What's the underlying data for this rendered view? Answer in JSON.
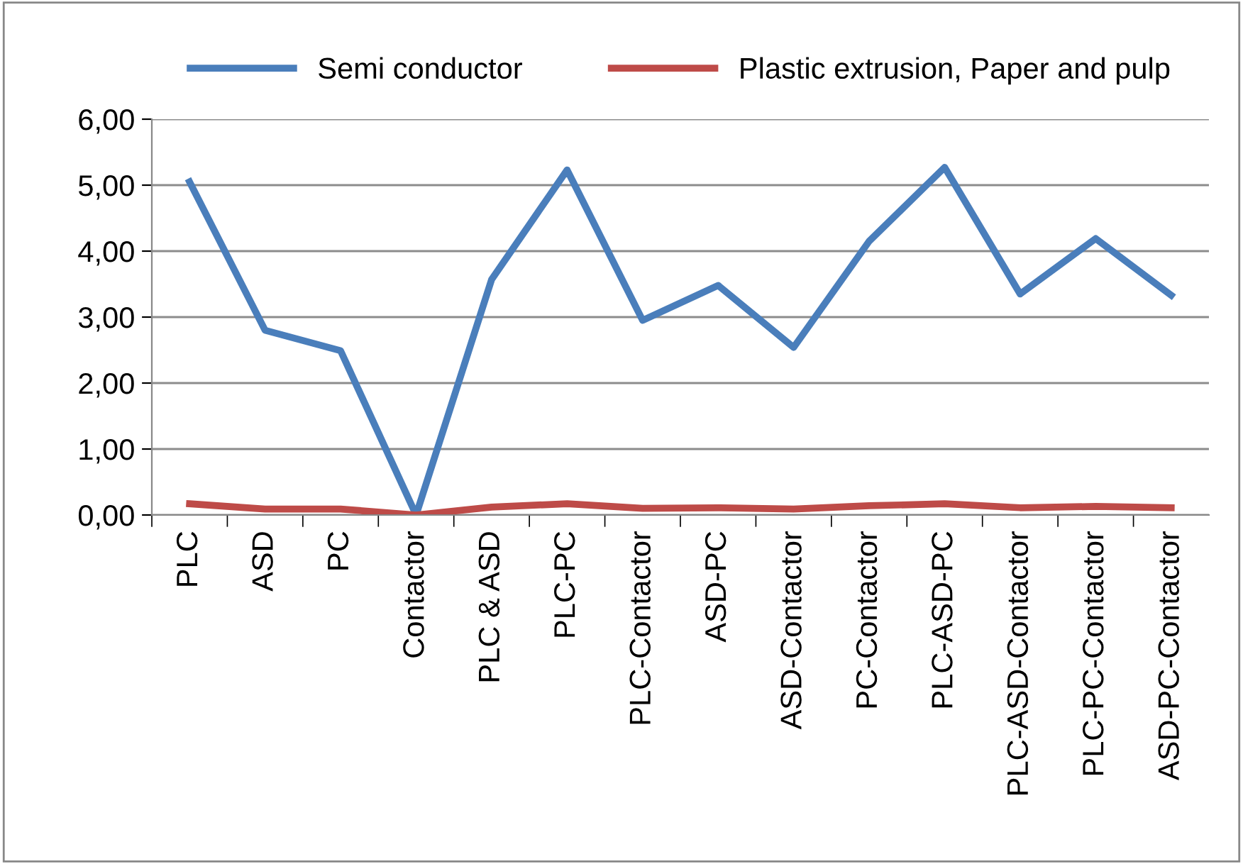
{
  "chart_data": {
    "type": "line",
    "categories": [
      "PLC",
      "ASD",
      "PC",
      "Contactor",
      "PLC & ASD",
      "PLC-PC",
      "PLC-Contactor",
      "ASD-PC",
      "ASD-Contactor",
      "PC-Contactor",
      "PLC-ASD-PC",
      "PLC-ASD-Contactor",
      "PLC-PC-Contactor",
      "ASD-PC-Contactor"
    ],
    "series": [
      {
        "name": "Semi conductor",
        "color": "#4a7ebb",
        "values": [
          5.05,
          2.8,
          2.49,
          0,
          3.57,
          5.23,
          2.95,
          3.48,
          2.54,
          4.15,
          5.27,
          3.35,
          4.19,
          3.33
        ]
      },
      {
        "name": "Plastic extrusion, Paper and pulp",
        "color": "#be4b48",
        "values": [
          0.17,
          0.09,
          0.09,
          0,
          0.12,
          0.17,
          0.1,
          0.11,
          0.09,
          0.14,
          0.17,
          0.11,
          0.13,
          0.11
        ]
      }
    ],
    "ylim": [
      0,
      6
    ],
    "yticks": [
      {
        "value": 0,
        "label": "0,00"
      },
      {
        "value": 1,
        "label": "1,00"
      },
      {
        "value": 2,
        "label": "2,00"
      },
      {
        "value": 3,
        "label": "3,00"
      },
      {
        "value": 4,
        "label": "4,00"
      },
      {
        "value": 5,
        "label": "5,00"
      },
      {
        "value": 6,
        "label": "6,00"
      }
    ],
    "grid": "y",
    "legend": "top",
    "marker": "none",
    "line_style": "solid"
  }
}
